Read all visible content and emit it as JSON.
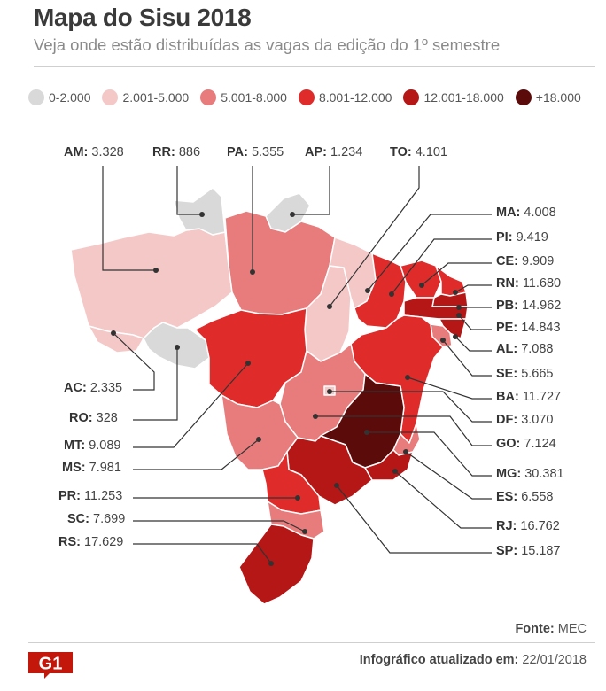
{
  "header": {
    "title": "Mapa do Sisu 2018",
    "subtitle": "Veja onde estão distribuídas as vagas da edição do 1º semestre"
  },
  "legend": [
    {
      "label": "0-2.000",
      "color": "#d9d9d9"
    },
    {
      "label": "2.001-5.000",
      "color": "#f5c8c8"
    },
    {
      "label": "5.001-8.000",
      "color": "#e87c7c"
    },
    {
      "label": "8.001-12.000",
      "color": "#e02b2b"
    },
    {
      "label": "12.001-18.000",
      "color": "#b51616"
    },
    {
      "label": "+18.000",
      "color": "#5c0b0b"
    }
  ],
  "states": {
    "AM": {
      "code": "AM:",
      "value": "3.328"
    },
    "RR": {
      "code": "RR:",
      "value": "886"
    },
    "PA": {
      "code": "PA:",
      "value": "5.355"
    },
    "AP": {
      "code": "AP:",
      "value": "1.234"
    },
    "TO": {
      "code": "TO:",
      "value": "4.101"
    },
    "MA": {
      "code": "MA:",
      "value": "4.008"
    },
    "PI": {
      "code": "PI:",
      "value": "9.419"
    },
    "CE": {
      "code": "CE:",
      "value": "9.909"
    },
    "RN": {
      "code": "RN:",
      "value": "11.680"
    },
    "PB": {
      "code": "PB:",
      "value": "14.962"
    },
    "PE": {
      "code": "PE:",
      "value": "14.843"
    },
    "AL": {
      "code": "AL:",
      "value": "7.088"
    },
    "SE": {
      "code": "SE:",
      "value": "5.665"
    },
    "BA": {
      "code": "BA:",
      "value": "11.727"
    },
    "DF": {
      "code": "DF:",
      "value": "3.070"
    },
    "GO": {
      "code": "GO:",
      "value": "7.124"
    },
    "MG": {
      "code": "MG:",
      "value": "30.381"
    },
    "ES": {
      "code": "ES:",
      "value": "6.558"
    },
    "RJ": {
      "code": "RJ:",
      "value": "16.762"
    },
    "SP": {
      "code": "SP:",
      "value": "15.187"
    },
    "AC": {
      "code": "AC:",
      "value": "2.335"
    },
    "RO": {
      "code": "RO:",
      "value": "328"
    },
    "MT": {
      "code": "MT:",
      "value": "9.089"
    },
    "MS": {
      "code": "MS:",
      "value": "7.981"
    },
    "PR": {
      "code": "PR:",
      "value": "11.253"
    },
    "SC": {
      "code": "SC:",
      "value": "7.699"
    },
    "RS": {
      "code": "RS:",
      "value": "17.629"
    }
  },
  "footer": {
    "source_label": "Fonte:",
    "source_value": "MEC",
    "logo_text": "G1",
    "updated_label": "Infográfico atualizado em:",
    "updated_value": "22/01/2018"
  }
}
